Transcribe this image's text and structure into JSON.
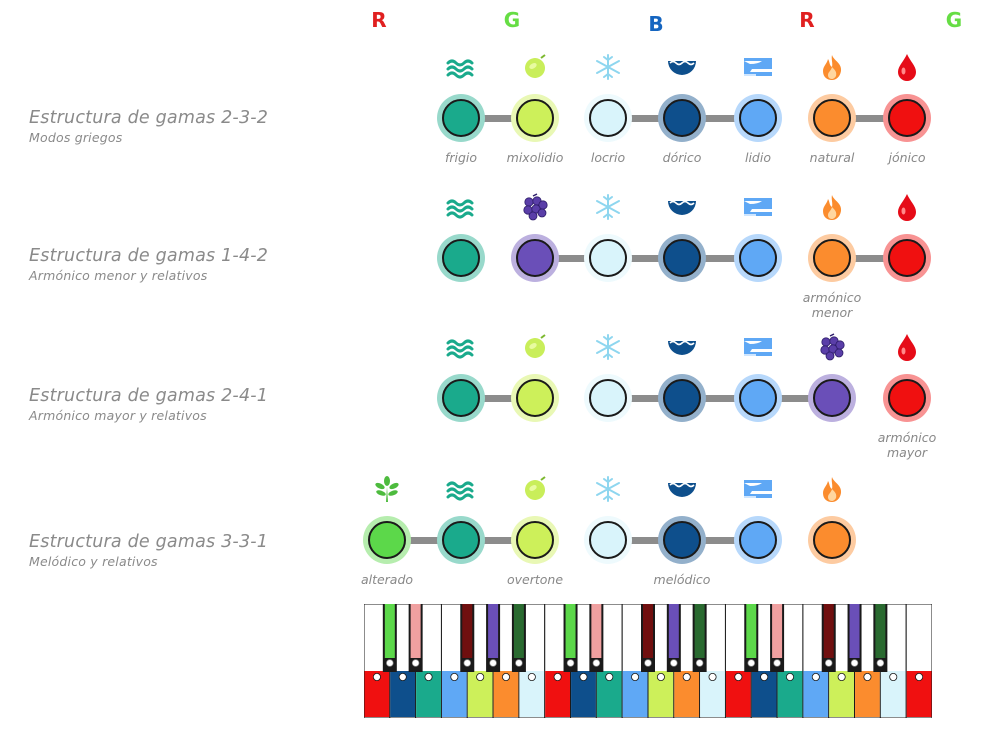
{
  "header_letters": [
    {
      "letter": "R",
      "color": "#e02020"
    },
    {
      "letter": "G",
      "color": "#66dd44"
    },
    {
      "letter": "B",
      "color": "#1565c0"
    },
    {
      "letter": "R",
      "color": "#e02020"
    },
    {
      "letter": "G",
      "color": "#66dd44"
    }
  ],
  "rows": [
    {
      "title": "Estructura de gamas 2-3-2",
      "subtitle": "Modos griegos",
      "nodes": [
        {
          "col": 1,
          "color": "#1aaa8c",
          "icon": "waves-icon",
          "label": "frigio"
        },
        {
          "col": 2,
          "color": "#cdf05a",
          "icon": "lime-icon",
          "label": "mixolidio"
        },
        {
          "col": 3,
          "color": "#d9f4fb",
          "icon": "snowflake-icon",
          "label": "locrio"
        },
        {
          "col": 4,
          "color": "#0e4f8c",
          "icon": "water-bowl-icon",
          "label": "dórico"
        },
        {
          "col": 5,
          "color": "#5fa8f5",
          "icon": "sky-icon",
          "label": "lidio"
        },
        {
          "col": 6,
          "color": "#fb8c2e",
          "icon": "flame-icon",
          "label": "natural"
        },
        {
          "col": 7,
          "color": "#f01010",
          "icon": "drop-icon",
          "label": "jónico"
        }
      ],
      "links": [
        [
          1,
          2
        ],
        [
          3,
          4
        ],
        [
          4,
          5
        ],
        [
          6,
          7
        ]
      ]
    },
    {
      "title": "Estructura de gamas 1-4-2",
      "subtitle": "Armónico menor y relativos",
      "nodes": [
        {
          "col": 1,
          "color": "#1aaa8c",
          "icon": "waves-icon",
          "label": ""
        },
        {
          "col": 2,
          "color": "#6a4fb8",
          "icon": "grapes-icon",
          "label": ""
        },
        {
          "col": 3,
          "color": "#d9f4fb",
          "icon": "snowflake-icon",
          "label": ""
        },
        {
          "col": 4,
          "color": "#0e4f8c",
          "icon": "water-bowl-icon",
          "label": ""
        },
        {
          "col": 5,
          "color": "#5fa8f5",
          "icon": "sky-icon",
          "label": ""
        },
        {
          "col": 6,
          "color": "#fb8c2e",
          "icon": "flame-icon",
          "label": "armónico menor"
        },
        {
          "col": 7,
          "color": "#f01010",
          "icon": "drop-icon",
          "label": ""
        }
      ],
      "links": [
        [
          2,
          3
        ],
        [
          3,
          4
        ],
        [
          4,
          5
        ],
        [
          6,
          7
        ]
      ]
    },
    {
      "title": "Estructura de gamas 2-4-1",
      "subtitle": "Armónico mayor y relativos",
      "nodes": [
        {
          "col": 1,
          "color": "#1aaa8c",
          "icon": "waves-icon",
          "label": ""
        },
        {
          "col": 2,
          "color": "#cdf05a",
          "icon": "lime-icon",
          "label": ""
        },
        {
          "col": 3,
          "color": "#d9f4fb",
          "icon": "snowflake-icon",
          "label": ""
        },
        {
          "col": 4,
          "color": "#0e4f8c",
          "icon": "water-bowl-icon",
          "label": ""
        },
        {
          "col": 5,
          "color": "#5fa8f5",
          "icon": "sky-icon",
          "label": ""
        },
        {
          "col": 6,
          "color": "#6a4fb8",
          "icon": "grapes-icon",
          "label": ""
        },
        {
          "col": 7,
          "color": "#f01010",
          "icon": "drop-icon",
          "label": "armónico mayor"
        }
      ],
      "links": [
        [
          1,
          2
        ],
        [
          3,
          4
        ],
        [
          4,
          5
        ],
        [
          5,
          6
        ]
      ]
    },
    {
      "title": "Estructura de gamas 3-3-1",
      "subtitle": "Melódico y relativos",
      "nodes": [
        {
          "col": 0,
          "color": "#5cd84a",
          "icon": "herb-icon",
          "label": "alterado"
        },
        {
          "col": 1,
          "color": "#1aaa8c",
          "icon": "waves-icon",
          "label": ""
        },
        {
          "col": 2,
          "color": "#cdf05a",
          "icon": "lime-icon",
          "label": "overtone"
        },
        {
          "col": 3,
          "color": "#d9f4fb",
          "icon": "snowflake-icon",
          "label": ""
        },
        {
          "col": 4,
          "color": "#0e4f8c",
          "icon": "water-bowl-icon",
          "label": "melódico"
        },
        {
          "col": 5,
          "color": "#5fa8f5",
          "icon": "sky-icon",
          "label": ""
        },
        {
          "col": 6,
          "color": "#fb8c2e",
          "icon": "flame-icon",
          "label": ""
        }
      ],
      "links": [
        [
          0,
          1
        ],
        [
          1,
          2
        ],
        [
          3,
          4
        ],
        [
          4,
          5
        ]
      ]
    }
  ],
  "keyboard": {
    "white_key_colors": [
      "#f01010",
      "#0e4f8c",
      "#1aaa8c",
      "#5fa8f5",
      "#cdf05a",
      "#fb8c2e",
      "#d9f4fb",
      "#f01010",
      "#0e4f8c",
      "#1aaa8c",
      "#5fa8f5",
      "#cdf05a",
      "#fb8c2e",
      "#d9f4fb",
      "#f01010",
      "#0e4f8c",
      "#1aaa8c",
      "#5fa8f5",
      "#cdf05a",
      "#fb8c2e",
      "#d9f4fb",
      "#f01010"
    ],
    "black_key_colors": [
      "#5cd84a",
      "#f0a0a0",
      "#700f0f",
      "#6a4fb8",
      "#2a6a30",
      "#5cd84a",
      "#f0a0a0",
      "#700f0f",
      "#6a4fb8",
      "#2a6a30",
      "#5cd84a",
      "#f0a0a0",
      "#700f0f",
      "#6a4fb8",
      "#2a6a30"
    ]
  }
}
